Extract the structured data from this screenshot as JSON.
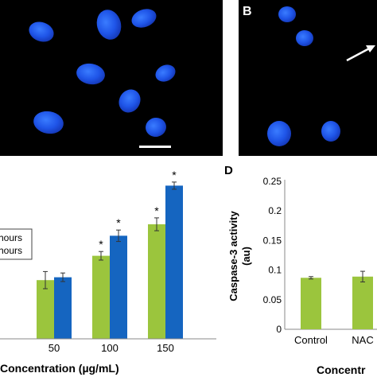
{
  "panels": {
    "b_label": "B",
    "d_label": "D"
  },
  "legend": {
    "entry1": "hours",
    "entry2": "hours"
  },
  "chart_data": [
    {
      "type": "bar",
      "categories": [
        "",
        "50",
        "100",
        "150"
      ],
      "series": [
        {
          "color": "#9bc53d",
          "values": [
            null,
            0.41,
            0.58,
            0.8
          ],
          "errors": [
            null,
            0.06,
            0.03,
            0.045
          ]
        },
        {
          "color": "#1565c0",
          "values": [
            null,
            0.43,
            0.72,
            1.07
          ],
          "errors": [
            null,
            0.03,
            0.04,
            0.025
          ]
        }
      ],
      "significance": [
        {
          "category": "100",
          "series": 0,
          "label": "*"
        },
        {
          "category": "100",
          "series": 1,
          "label": "*"
        },
        {
          "category": "150",
          "series": 0,
          "label": "*"
        },
        {
          "category": "150",
          "series": 1,
          "label": "*"
        }
      ],
      "xlabel": "Concentration (µg/mL)",
      "ylim": [
        0,
        1.2
      ]
    },
    {
      "type": "bar",
      "categories": [
        "Control",
        "NAC"
      ],
      "values": [
        0.087,
        0.089
      ],
      "errors": [
        0.002,
        0.009
      ],
      "color": "#9bc53d",
      "ylabel": "Caspase-3 activity (au)",
      "ylabel_line1": "Caspase-3 activity",
      "ylabel_line2": "(au)",
      "xlabel": "Concentr",
      "ylim": [
        0,
        0.25
      ],
      "yticks": [
        "0",
        "0.05",
        "0.1",
        "0.15",
        "0.2",
        "0.25"
      ]
    }
  ]
}
